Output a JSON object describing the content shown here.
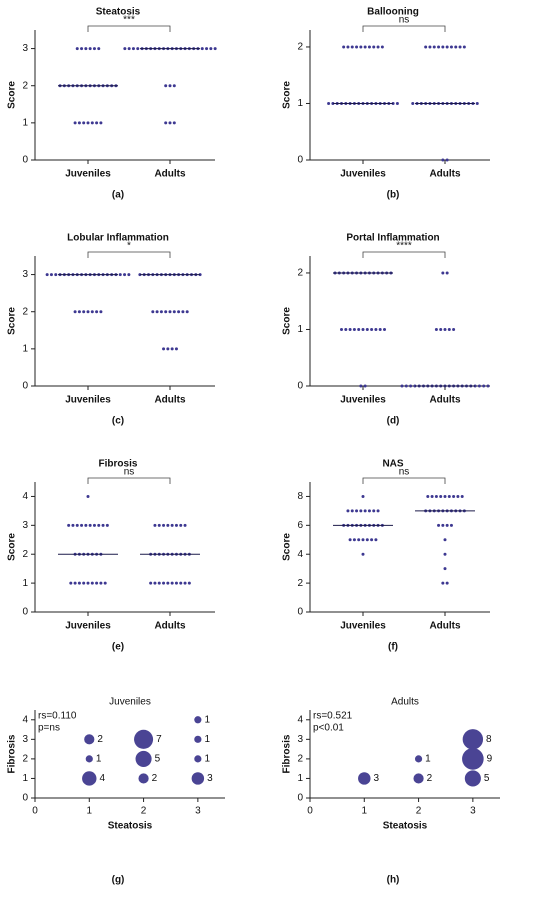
{
  "chart_data": [
    {
      "type": "strip",
      "title": "Steatosis",
      "ylabel": "Score",
      "panel_label": "(a)",
      "annotation": "***",
      "color": "#3d3891",
      "categories": [
        "Juveniles",
        "Adults"
      ],
      "values": [
        [
          3,
          3,
          3,
          3,
          3,
          3,
          2,
          2,
          2,
          2,
          2,
          2,
          2,
          2,
          2,
          2,
          2,
          2,
          2,
          2,
          1,
          1,
          1,
          1,
          1,
          1,
          1
        ],
        [
          3,
          3,
          3,
          3,
          3,
          3,
          3,
          3,
          3,
          3,
          3,
          3,
          3,
          3,
          3,
          3,
          3,
          3,
          3,
          3,
          3,
          3,
          2,
          2,
          2,
          1,
          1,
          1
        ]
      ],
      "medians": [
        2,
        3
      ],
      "ylim": [
        0,
        3.5
      ],
      "yticks": [
        0,
        1,
        2,
        3
      ]
    },
    {
      "type": "strip",
      "title": "Ballooning",
      "ylabel": "Score",
      "panel_label": "(b)",
      "annotation": "ns",
      "color": "#3d3891",
      "categories": [
        "Juveniles",
        "Adults"
      ],
      "values": [
        [
          2,
          2,
          2,
          2,
          2,
          2,
          2,
          2,
          2,
          2,
          1,
          1,
          1,
          1,
          1,
          1,
          1,
          1,
          1,
          1,
          1,
          1,
          1,
          1,
          1,
          1,
          1
        ],
        [
          2,
          2,
          2,
          2,
          2,
          2,
          2,
          2,
          2,
          2,
          1,
          1,
          1,
          1,
          1,
          1,
          1,
          1,
          1,
          1,
          1,
          1,
          1,
          1,
          1,
          1,
          0,
          0
        ]
      ],
      "medians": [
        1,
        1
      ],
      "ylim": [
        0,
        2.3
      ],
      "yticks": [
        0,
        1,
        2
      ]
    },
    {
      "type": "strip",
      "title": "Lobular Inflammation",
      "ylabel": "Score",
      "panel_label": "(c)",
      "annotation": "*",
      "color": "#3d3891",
      "categories": [
        "Juveniles",
        "Adults"
      ],
      "values": [
        [
          3,
          3,
          3,
          3,
          3,
          3,
          3,
          3,
          3,
          3,
          3,
          3,
          3,
          3,
          3,
          3,
          3,
          3,
          3,
          3,
          2,
          2,
          2,
          2,
          2,
          2,
          2
        ],
        [
          3,
          3,
          3,
          3,
          3,
          3,
          3,
          3,
          3,
          3,
          3,
          3,
          3,
          3,
          3,
          2,
          2,
          2,
          2,
          2,
          2,
          2,
          2,
          2,
          1,
          1,
          1,
          1
        ]
      ],
      "medians": [
        3,
        3
      ],
      "ylim": [
        0,
        3.5
      ],
      "yticks": [
        0,
        1,
        2,
        3
      ]
    },
    {
      "type": "strip",
      "title": "Portal Inflammation",
      "ylabel": "Score",
      "panel_label": "(d)",
      "annotation": "****",
      "color": "#3d3891",
      "categories": [
        "Juveniles",
        "Adults"
      ],
      "values": [
        [
          2,
          2,
          2,
          2,
          2,
          2,
          2,
          2,
          2,
          2,
          2,
          2,
          2,
          2,
          1,
          1,
          1,
          1,
          1,
          1,
          1,
          1,
          1,
          1,
          1,
          0,
          0
        ],
        [
          2,
          2,
          1,
          1,
          1,
          1,
          1,
          0,
          0,
          0,
          0,
          0,
          0,
          0,
          0,
          0,
          0,
          0,
          0,
          0,
          0,
          0,
          0,
          0,
          0,
          0,
          0,
          0
        ]
      ],
      "medians": [
        2,
        0
      ],
      "ylim": [
        0,
        2.3
      ],
      "yticks": [
        0,
        1,
        2
      ]
    },
    {
      "type": "strip",
      "title": "Fibrosis",
      "ylabel": "Score",
      "panel_label": "(e)",
      "annotation": "ns",
      "color": "#3d3891",
      "categories": [
        "Juveniles",
        "Adults"
      ],
      "values": [
        [
          4,
          3,
          3,
          3,
          3,
          3,
          3,
          3,
          3,
          3,
          3,
          2,
          2,
          2,
          2,
          2,
          2,
          2,
          1,
          1,
          1,
          1,
          1,
          1,
          1,
          1,
          1
        ],
        [
          3,
          3,
          3,
          3,
          3,
          3,
          3,
          3,
          2,
          2,
          2,
          2,
          2,
          2,
          2,
          2,
          2,
          2,
          1,
          1,
          1,
          1,
          1,
          1,
          1,
          1,
          1,
          1
        ]
      ],
      "medians": [
        2,
        2
      ],
      "ylim": [
        0,
        4.5
      ],
      "yticks": [
        0,
        1,
        2,
        3,
        4
      ]
    },
    {
      "type": "strip",
      "title": "NAS",
      "ylabel": "Score",
      "panel_label": "(f)",
      "annotation": "ns",
      "color": "#3d3891",
      "categories": [
        "Juveniles",
        "Adults"
      ],
      "values": [
        [
          8,
          7,
          7,
          7,
          7,
          7,
          7,
          7,
          7,
          6,
          6,
          6,
          6,
          6,
          6,
          6,
          6,
          6,
          6,
          5,
          5,
          5,
          5,
          5,
          5,
          5,
          4
        ],
        [
          8,
          8,
          8,
          8,
          8,
          8,
          8,
          8,
          8,
          7,
          7,
          7,
          7,
          7,
          7,
          7,
          7,
          7,
          7,
          6,
          6,
          6,
          6,
          5,
          4,
          3,
          2,
          2
        ]
      ],
      "medians": [
        6,
        7
      ],
      "ylim": [
        0,
        9
      ],
      "yticks": [
        0,
        2,
        4,
        6,
        8
      ]
    },
    {
      "type": "bubble",
      "title": "Juveniles",
      "xlabel": "Steatosis",
      "ylabel": "Fibrosis",
      "panel_label": "(g)",
      "annotations": [
        "rs=0.110",
        "p=ns"
      ],
      "color": "#4a4494",
      "x": [
        1,
        1,
        1,
        2,
        2,
        2,
        3,
        3,
        3,
        3
      ],
      "y": [
        3,
        2,
        1,
        3,
        2,
        1,
        4,
        3,
        2,
        1
      ],
      "sizes": [
        2,
        1,
        4,
        7,
        5,
        2,
        1,
        1,
        1,
        3
      ],
      "xlim": [
        0,
        3.5
      ],
      "xticks": [
        0,
        1,
        2,
        3
      ],
      "ylim": [
        0,
        4.5
      ],
      "yticks": [
        0,
        1,
        2,
        3,
        4
      ]
    },
    {
      "type": "bubble",
      "title": "Adults",
      "xlabel": "Steatosis",
      "ylabel": "Fibrosis",
      "panel_label": "(h)",
      "annotations": [
        "rs=0.521",
        "p<0.01"
      ],
      "color": "#4a4494",
      "x": [
        1,
        2,
        2,
        3,
        3,
        3
      ],
      "y": [
        1,
        2,
        1,
        3,
        2,
        1
      ],
      "sizes": [
        3,
        1,
        2,
        8,
        9,
        5
      ],
      "xlim": [
        0,
        3.5
      ],
      "xticks": [
        0,
        1,
        2,
        3
      ],
      "ylim": [
        0,
        4.5
      ],
      "yticks": [
        0,
        1,
        2,
        3,
        4
      ]
    }
  ]
}
